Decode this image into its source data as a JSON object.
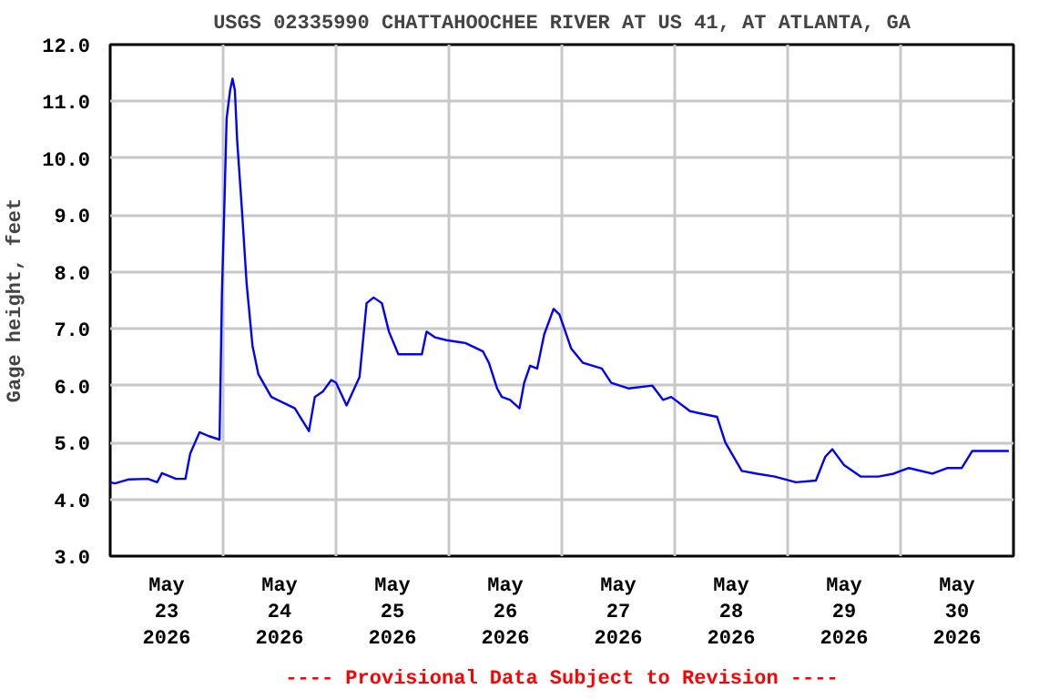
{
  "chart_data": {
    "type": "line",
    "title": "USGS 02335990 CHATTAHOOCHEE RIVER AT US 41, AT ATLANTA, GA",
    "ylabel": "Gage height, feet",
    "annotations": [
      "---- Provisional Data Subject to Revision ----"
    ],
    "xlim": [
      "2026-05-23",
      "2026-05-31"
    ],
    "xticks": [
      {
        "value": "2026-05-23T12:00",
        "label": "May\n23\n2026"
      },
      {
        "value": "2026-05-24T12:00",
        "label": "May\n24\n2026"
      },
      {
        "value": "2026-05-25T12:00",
        "label": "May\n25\n2026"
      },
      {
        "value": "2026-05-26T12:00",
        "label": "May\n26\n2026"
      },
      {
        "value": "2026-05-27T12:00",
        "label": "May\n27\n2026"
      },
      {
        "value": "2026-05-28T12:00",
        "label": "May\n28\n2026"
      },
      {
        "value": "2026-05-29T12:00",
        "label": "May\n29\n2026"
      },
      {
        "value": "2026-05-30T12:00",
        "label": "May\n30\n2026"
      },
      {
        "value": "2026-05-24",
        "label": null
      },
      {
        "value": "2026-05-25",
        "label": null
      },
      {
        "value": "2026-05-26",
        "label": null
      },
      {
        "value": "2026-05-27",
        "label": null
      },
      {
        "value": "2026-05-28",
        "label": null
      },
      {
        "value": "2026-05-29",
        "label": null
      },
      {
        "value": "2026-05-30",
        "label": null
      }
    ],
    "ylim": [
      3,
      12
    ],
    "yticks": [
      {
        "value": 3,
        "label": "3.0"
      },
      {
        "value": 4,
        "label": "4.0"
      },
      {
        "value": 5,
        "label": "5.0"
      },
      {
        "value": 6,
        "label": "6.0"
      },
      {
        "value": 7,
        "label": "7.0"
      },
      {
        "value": 8,
        "label": "8.0"
      },
      {
        "value": 9,
        "label": "9.0"
      },
      {
        "value": 10,
        "label": "10.0"
      },
      {
        "value": 11,
        "label": "11.0"
      },
      {
        "value": 12,
        "label": "12.0"
      }
    ],
    "grid": true,
    "series": [
      {
        "color": "#0000ff",
        "x": [
          "2026-05-23T00:00",
          "2026-05-23T01:00",
          "2026-05-23T04:00",
          "2026-05-23T08:00",
          "2026-05-23T10:00",
          "2026-05-23T11:00",
          "2026-05-23T14:00",
          "2026-05-23T16:00",
          "2026-05-23T17:00",
          "2026-05-23T19:00",
          "2026-05-23T21:00",
          "2026-05-23T23:15",
          "2026-05-23T23:45",
          "2026-05-24T00:15",
          "2026-05-24T00:45",
          "2026-05-24T01:30",
          "2026-05-24T02:00",
          "2026-05-24T02:30",
          "2026-05-24T03:00",
          "2026-05-24T04:00",
          "2026-05-24T05:00",
          "2026-05-24T06:15",
          "2026-05-24T07:30",
          "2026-05-24T10:15",
          "2026-05-24T12:45",
          "2026-05-24T15:15",
          "2026-05-24T18:15",
          "2026-05-24T19:30",
          "2026-05-24T21:15",
          "2026-05-24T23:00",
          "2026-05-25T00:00",
          "2026-05-25T02:15",
          "2026-05-25T05:00",
          "2026-05-25T06:30",
          "2026-05-25T08:00",
          "2026-05-25T09:45",
          "2026-05-25T11:15",
          "2026-05-25T13:15",
          "2026-05-25T15:15",
          "2026-05-25T18:15",
          "2026-05-25T19:15",
          "2026-05-25T21:00",
          "2026-05-25T23:30",
          "2026-05-26T03:30",
          "2026-05-26T07:15",
          "2026-05-26T08:30",
          "2026-05-26T10:15",
          "2026-05-26T11:15",
          "2026-05-26T13:00",
          "2026-05-26T15:00",
          "2026-05-26T16:00",
          "2026-05-26T17:15",
          "2026-05-26T18:45",
          "2026-05-26T20:15",
          "2026-05-26T22:15",
          "2026-05-26T23:30",
          "2026-05-27T02:00",
          "2026-05-27T04:30",
          "2026-05-27T08:30",
          "2026-05-27T10:30",
          "2026-05-27T14:15",
          "2026-05-27T19:15",
          "2026-05-27T21:30",
          "2026-05-27T23:15",
          "2026-05-28T03:15",
          "2026-05-28T09:00",
          "2026-05-28T10:45",
          "2026-05-28T14:15",
          "2026-05-28T17:30",
          "2026-05-28T21:15",
          "2026-05-29T01:45",
          "2026-05-29T06:00",
          "2026-05-29T08:00",
          "2026-05-29T09:30",
          "2026-05-29T12:00",
          "2026-05-29T15:30",
          "2026-05-29T19:15",
          "2026-05-29T22:30",
          "2026-05-30T01:45",
          "2026-05-30T06:45",
          "2026-05-30T10:00",
          "2026-05-30T13:00",
          "2026-05-30T15:15",
          "2026-05-30T23:00"
        ],
        "values": [
          4.3,
          4.28,
          4.35,
          4.36,
          4.3,
          4.46,
          4.36,
          4.36,
          4.8,
          5.18,
          5.11,
          5.05,
          7.6,
          9.1,
          10.7,
          11.2,
          11.4,
          11.2,
          10.3,
          9.1,
          7.8,
          6.7,
          6.2,
          5.8,
          5.7,
          5.6,
          5.2,
          5.8,
          5.9,
          6.1,
          6.05,
          5.65,
          6.15,
          7.45,
          7.55,
          7.45,
          6.95,
          6.55,
          6.55,
          6.55,
          6.95,
          6.85,
          6.8,
          6.75,
          6.6,
          6.4,
          5.95,
          5.8,
          5.75,
          5.6,
          6.05,
          6.35,
          6.3,
          6.9,
          7.35,
          7.25,
          6.65,
          6.4,
          6.3,
          6.05,
          5.95,
          6.0,
          5.75,
          5.8,
          5.55,
          5.45,
          5.0,
          4.5,
          4.45,
          4.4,
          4.3,
          4.33,
          4.75,
          4.88,
          4.6,
          4.4,
          4.4,
          4.45,
          4.55,
          4.45,
          4.55,
          4.55,
          4.85,
          4.85
        ]
      }
    ]
  }
}
